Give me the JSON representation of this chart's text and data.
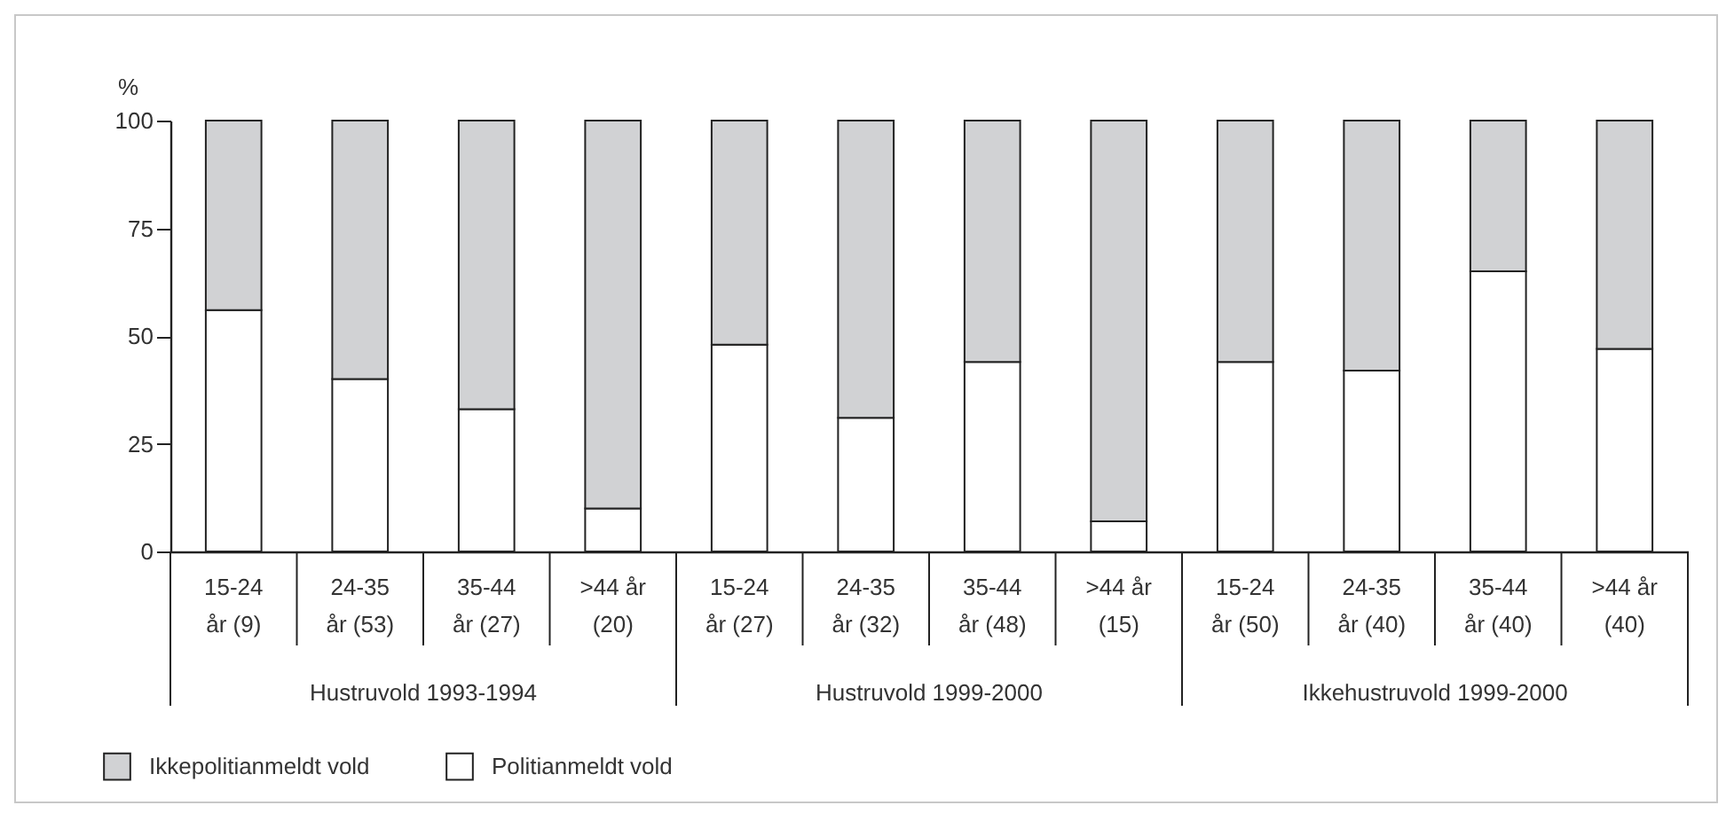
{
  "chart_data": {
    "type": "bar",
    "stacked": true,
    "ylabel": "%",
    "categories": [
      "15-24\når (9)",
      "24-35\når (53)",
      "35-44\når (27)",
      ">44 år\n(20)",
      "15-24\når (27)",
      "24-35\når (32)",
      "35-44\når (48)",
      ">44 år\n(15)",
      "15-24\når (50)",
      "24-35\når (40)",
      "35-44\når (40)",
      ">44 år\n(40)"
    ],
    "series": [
      {
        "name": "Politianmeldt vold",
        "color": "#ffffff",
        "values": [
          56,
          40,
          33,
          10,
          48,
          31,
          44,
          7,
          44,
          42,
          65,
          47
        ]
      },
      {
        "name": "Ikkepolitianmeldt vold",
        "color": "#d1d2d4",
        "values": [
          44,
          60,
          67,
          90,
          52,
          69,
          56,
          93,
          56,
          58,
          35,
          53
        ]
      }
    ],
    "ylim": [
      0,
      100
    ],
    "yticks": [
      0,
      25,
      50,
      75,
      100
    ],
    "grid": false,
    "legend": "bottom left",
    "annotations": [
      "Hustruvold 1993-1994",
      "Hustruvold 1999-2000",
      "Ikkehustruvold 1999-2000"
    ]
  }
}
